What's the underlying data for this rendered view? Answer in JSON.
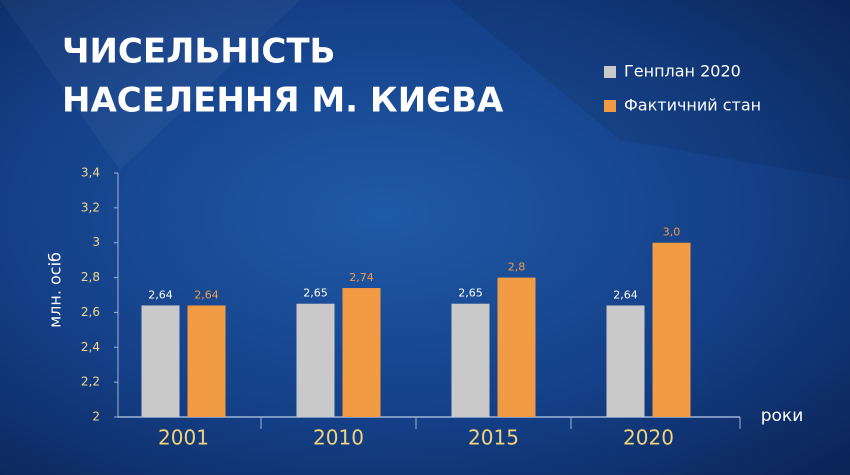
{
  "chart_data": {
    "type": "bar",
    "title": [
      "ЧИСЕЛЬНІСТЬ",
      "НАСЕЛЕННЯ М. КИЄВА"
    ],
    "y_label": "млн. осіб",
    "x_label": "роки",
    "categories": [
      "2001",
      "2010",
      "2015",
      "2020"
    ],
    "series": [
      {
        "name": "Генплан 2020",
        "color": "#c9c9c9",
        "values": [
          2.64,
          2.65,
          2.65,
          2.64
        ],
        "value_labels": [
          "2,64",
          "2,65",
          "2,65",
          "2,64"
        ]
      },
      {
        "name": "Фактичний стан",
        "color": "#f29b45",
        "values": [
          2.64,
          2.74,
          2.8,
          3
        ],
        "value_labels": [
          "2,64",
          "2,74",
          "2,8",
          "3,0"
        ]
      }
    ],
    "ylim": [
      2,
      3.4
    ],
    "yticks": [
      2,
      {
        "value": 2.2,
        "label": "2,2"
      },
      {
        "value": 2.4,
        "label": "2,4"
      },
      {
        "value": 2.6,
        "label": "2,6"
      },
      {
        "value": 2.8,
        "label": "2,8"
      },
      3,
      {
        "value": 3.2,
        "label": "3,2"
      },
      {
        "value": 3.4,
        "label": "3,4"
      }
    ],
    "legend": "top-right"
  }
}
